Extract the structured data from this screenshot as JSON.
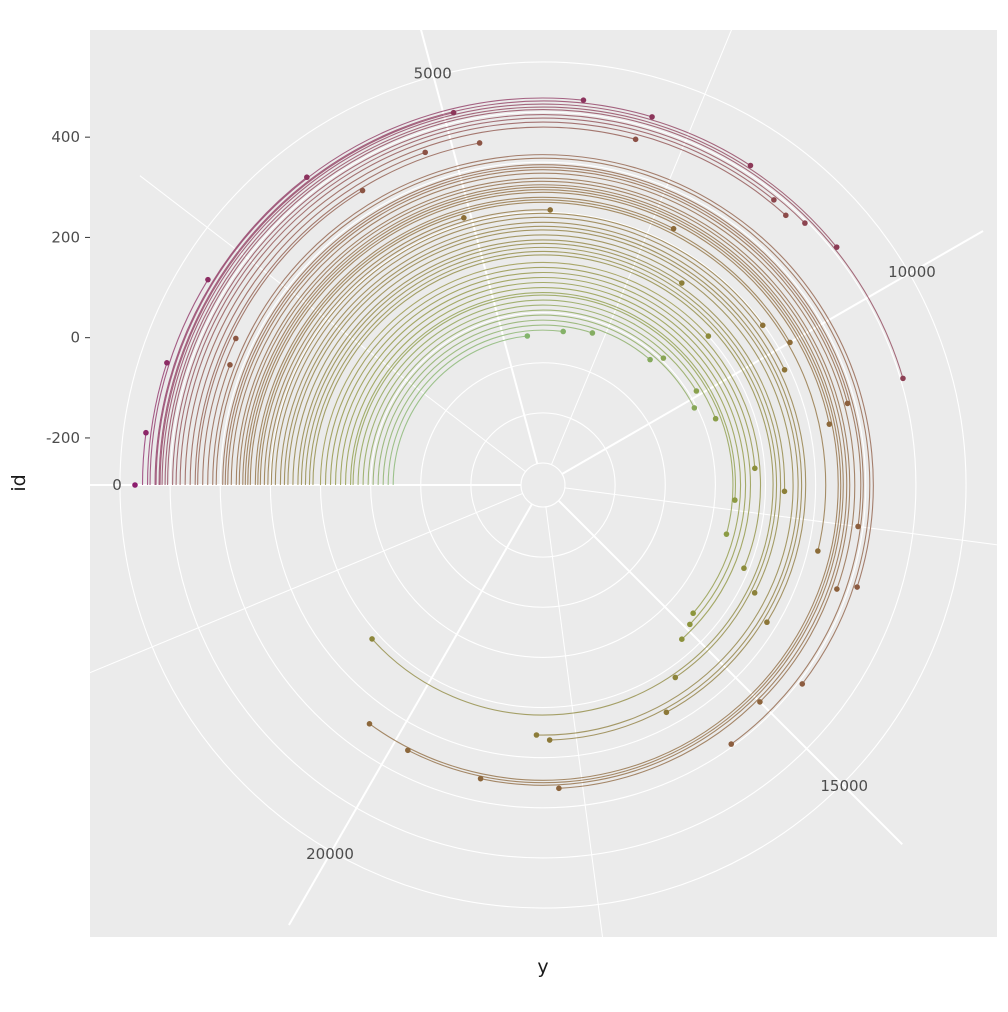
{
  "chart_data": {
    "type": "scatter",
    "coord": "polar",
    "description_of_marks": "Each observation is an arc drawn at constant radius (id) sweeping clockwise from angle y=0 to its y value, ending in a point; color goes from magenta (high id) through brown/olive/green to cyan (low id).",
    "xlabel": "y",
    "ylabel": "id",
    "theta_axis": {
      "variable": "y",
      "range": [
        0,
        24000
      ],
      "ticks": [
        0,
        5000,
        10000,
        15000,
        20000
      ],
      "tick_labels": [
        "0",
        "5000",
        "10000",
        "15000",
        "20000"
      ]
    },
    "radial_axis": {
      "variable": "id",
      "range": [
        -250,
        520
      ],
      "ticks": [
        -200,
        0,
        200,
        400
      ],
      "tick_labels": [
        "-200",
        "0",
        "200",
        "400"
      ]
    },
    "grid": true,
    "legend": "none",
    "colors": {
      "panel_background": "#ebebeb",
      "grid": "#ffffff",
      "high_id": "#8e1f6e",
      "mid_high_id": "#8a4f3a",
      "mid_id": "#8a8a2a",
      "mid_low_id": "#7cc46a",
      "low_id": "#7de0dc"
    },
    "series": [
      {
        "values": [
          {
            "id": 520,
            "y": 0
          },
          {
            "id": 505,
            "y": 500
          },
          {
            "id": 495,
            "y": 1200
          },
          {
            "id": 490,
            "y": 2100
          },
          {
            "id": 480,
            "y": 3500
          },
          {
            "id": 470,
            "y": 5100
          },
          {
            "id": 478,
            "y": 6400
          },
          {
            "id": 472,
            "y": 7100
          },
          {
            "id": 466,
            "y": 8200
          },
          {
            "id": 460,
            "y": 9400
          },
          {
            "id": 455,
            "y": 10900
          },
          {
            "id": 445,
            "y": 9000
          },
          {
            "id": 438,
            "y": 8600
          },
          {
            "id": 430,
            "y": 8800
          },
          {
            "id": 420,
            "y": 7000
          },
          {
            "id": 410,
            "y": 4700
          },
          {
            "id": 400,
            "y": 5300
          },
          {
            "id": 395,
            "y": 3900
          },
          {
            "id": 385,
            "y": 1700
          },
          {
            "id": 375,
            "y": 1400
          },
          {
            "id": 365,
            "y": 13200
          },
          {
            "id": 358,
            "y": 14500
          },
          {
            "id": 345,
            "y": 15600
          },
          {
            "id": 340,
            "y": 12500
          },
          {
            "id": 335,
            "y": 11000
          },
          {
            "id": 328,
            "y": 13300
          },
          {
            "id": 318,
            "y": 15000
          },
          {
            "id": 312,
            "y": 17800
          },
          {
            "id": 305,
            "y": 18800
          },
          {
            "id": 300,
            "y": 19800
          },
          {
            "id": 295,
            "y": 20400
          },
          {
            "id": 290,
            "y": 11200
          },
          {
            "id": 280,
            "y": 7800
          },
          {
            "id": 275,
            "y": 10000
          },
          {
            "id": 270,
            "y": 12900
          },
          {
            "id": 262,
            "y": 4900
          },
          {
            "id": 255,
            "y": 6100
          },
          {
            "id": 248,
            "y": 9600
          },
          {
            "id": 240,
            "y": 10300
          },
          {
            "id": 230,
            "y": 14100
          },
          {
            "id": 222,
            "y": 16100
          },
          {
            "id": 215,
            "y": 17900
          },
          {
            "id": 205,
            "y": 18100
          },
          {
            "id": 195,
            "y": 8300
          },
          {
            "id": 188,
            "y": 12100
          },
          {
            "id": 180,
            "y": 13800
          },
          {
            "id": 172,
            "y": 15700
          },
          {
            "id": 165,
            "y": 21200
          },
          {
            "id": 150,
            "y": 9200
          },
          {
            "id": 140,
            "y": 13500
          },
          {
            "id": 130,
            "y": 11700
          },
          {
            "id": 120,
            "y": 15200
          },
          {
            "id": 110,
            "y": 14900
          },
          {
            "id": 100,
            "y": 14700
          },
          {
            "id": 90,
            "y": 12300
          },
          {
            "id": 85,
            "y": 13000
          },
          {
            "id": 75,
            "y": 10600
          },
          {
            "id": 65,
            "y": 9900
          },
          {
            "id": 55,
            "y": 8900
          },
          {
            "id": 45,
            "y": 10200
          },
          {
            "id": 35,
            "y": 8700
          },
          {
            "id": 25,
            "y": 7200
          },
          {
            "id": 15,
            "y": 6500
          },
          {
            "id": 5,
            "y": 5600
          }
        ]
      }
    ]
  }
}
